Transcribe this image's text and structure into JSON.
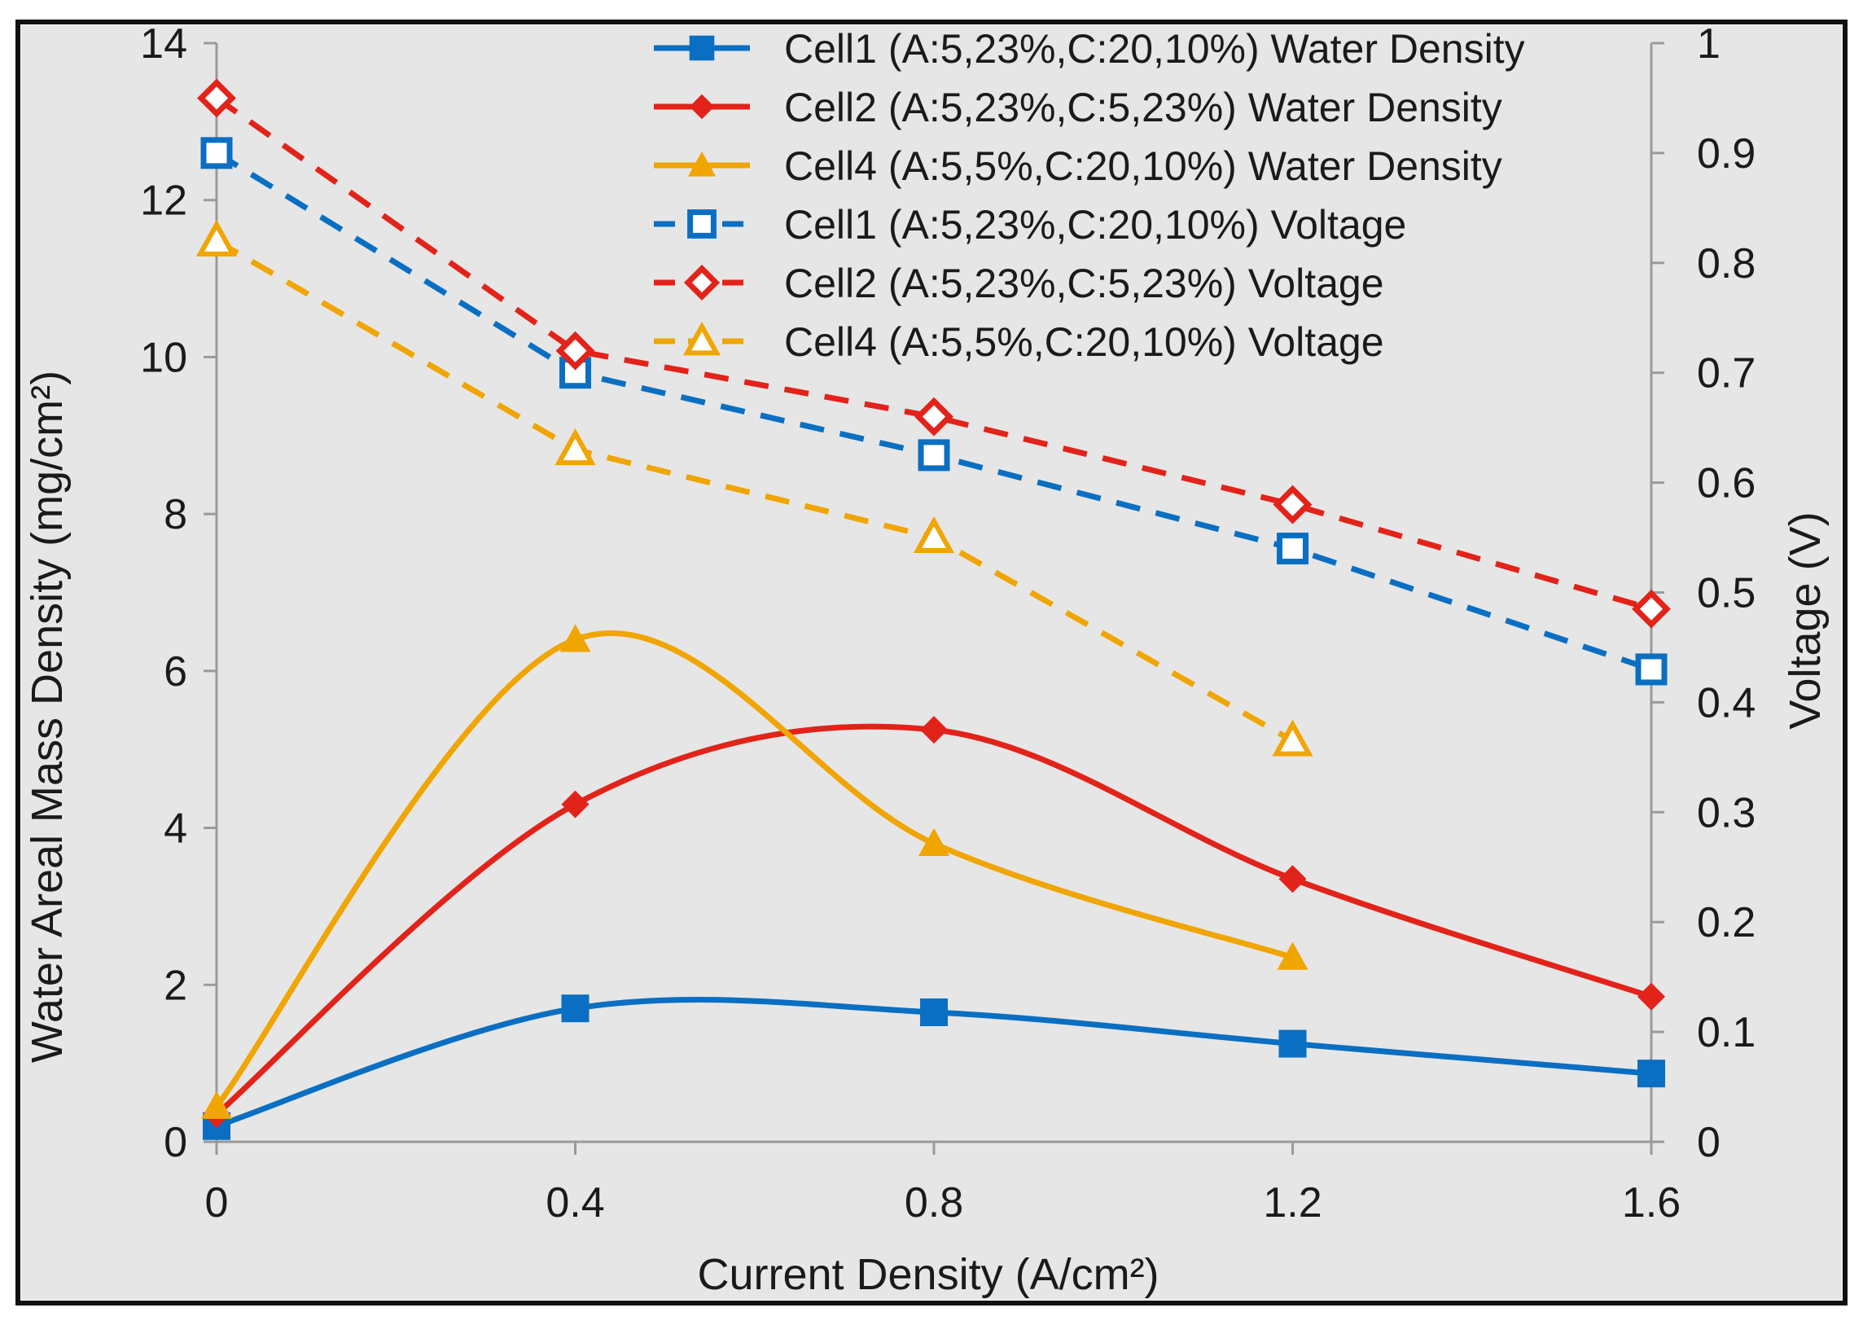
{
  "chart_data": {
    "type": "line",
    "x": [
      0,
      0.4,
      0.8,
      1.2,
      1.6
    ],
    "x_tick_labels": [
      "0",
      "0.4",
      "0.8",
      "1.2",
      "1.6"
    ],
    "xlabel": "Current Density (A/cm²)",
    "ylabel_left": "Water Areal Mass Density (mg/cm²)",
    "ylabel_right": "Voltage (V)",
    "xlim": [
      0,
      1.6
    ],
    "ylim_left": [
      0,
      14
    ],
    "ylim_right": [
      0,
      1
    ],
    "y_left_ticks": [
      "0",
      "2",
      "4",
      "6",
      "8",
      "10",
      "12",
      "14"
    ],
    "y_right_ticks": [
      "0",
      "0.1",
      "0.2",
      "0.3",
      "0.4",
      "0.5",
      "0.6",
      "0.7",
      "0.8",
      "0.9",
      "1"
    ],
    "legend_position": "top-right",
    "series": [
      {
        "name": "Cell1 (A:5,23%,C:20,10%) Water Density",
        "axis": "left",
        "style": "solid",
        "marker": "square",
        "color": "#0a6fc2",
        "x": [
          0,
          0.4,
          0.8,
          1.2,
          1.6
        ],
        "values": [
          0.2,
          1.7,
          1.65,
          1.25,
          0.87
        ]
      },
      {
        "name": "Cell2 (A:5,23%,C:5,23%) Water Density",
        "axis": "left",
        "style": "solid",
        "marker": "diamond",
        "color": "#e2231a",
        "x": [
          0,
          0.4,
          0.8,
          1.2,
          1.6
        ],
        "values": [
          0.35,
          4.3,
          5.25,
          3.35,
          1.85
        ]
      },
      {
        "name": "Cell4 (A:5,5%,C:20,10%) Water Density",
        "axis": "left",
        "style": "solid",
        "marker": "triangle",
        "color": "#f0a500",
        "x": [
          0,
          0.4,
          0.8,
          1.2
        ],
        "values": [
          0.45,
          6.4,
          3.8,
          2.35
        ]
      },
      {
        "name": "Cell1 (A:5,23%,C:20,10%) Voltage",
        "axis": "right",
        "style": "dashed",
        "marker": "square-open",
        "color": "#0a6fc2",
        "x": [
          0,
          0.4,
          0.8,
          1.2,
          1.6
        ],
        "values": [
          0.9,
          0.7,
          0.625,
          0.54,
          0.43
        ]
      },
      {
        "name": "Cell2 (A:5,23%,C:5,23%) Voltage",
        "axis": "right",
        "style": "dashed",
        "marker": "diamond-open",
        "color": "#e2231a",
        "x": [
          0,
          0.4,
          0.8,
          1.2,
          1.6
        ],
        "values": [
          0.95,
          0.72,
          0.66,
          0.58,
          0.485
        ]
      },
      {
        "name": "Cell4 (A:5,5%,C:20,10%) Voltage",
        "axis": "right",
        "style": "dashed",
        "marker": "triangle-open",
        "color": "#f0a500",
        "x": [
          0,
          0.4,
          0.8,
          1.2
        ],
        "values": [
          0.82,
          0.63,
          0.55,
          0.365
        ]
      }
    ]
  }
}
